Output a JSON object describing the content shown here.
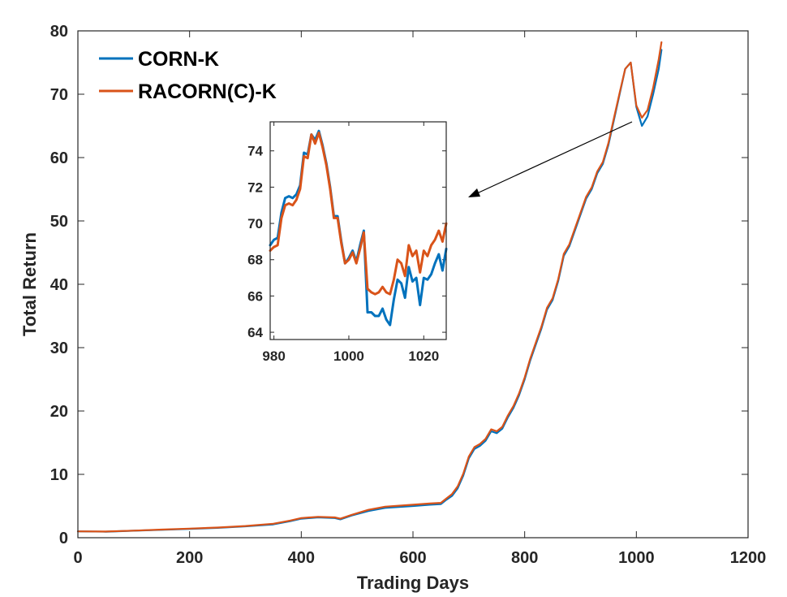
{
  "chart_data": [
    {
      "type": "line",
      "xlabel": "Trading Days",
      "ylabel": "Total Return",
      "xlim": [
        0,
        1200
      ],
      "ylim": [
        0,
        80
      ],
      "xticks": [
        0,
        200,
        400,
        600,
        800,
        1000,
        1200
      ],
      "yticks": [
        0,
        10,
        20,
        30,
        40,
        50,
        60,
        70,
        80
      ],
      "grid": false,
      "legend_position": "top-left",
      "series": [
        {
          "name": "CORN-K",
          "color": "#0072BD",
          "points": [
            [
              0,
              1.0
            ],
            [
              50,
              0.95
            ],
            [
              100,
              1.1
            ],
            [
              150,
              1.25
            ],
            [
              200,
              1.4
            ],
            [
              250,
              1.55
            ],
            [
              300,
              1.8
            ],
            [
              350,
              2.1
            ],
            [
              380,
              2.6
            ],
            [
              400,
              3.0
            ],
            [
              430,
              3.2
            ],
            [
              460,
              3.1
            ],
            [
              470,
              2.9
            ],
            [
              490,
              3.5
            ],
            [
              520,
              4.2
            ],
            [
              550,
              4.7
            ],
            [
              600,
              5.0
            ],
            [
              630,
              5.2
            ],
            [
              650,
              5.3
            ],
            [
              660,
              6.0
            ],
            [
              670,
              6.6
            ],
            [
              680,
              7.8
            ],
            [
              690,
              9.8
            ],
            [
              700,
              12.5
            ],
            [
              710,
              14.0
            ],
            [
              720,
              14.5
            ],
            [
              730,
              15.3
            ],
            [
              740,
              16.8
            ],
            [
              750,
              16.5
            ],
            [
              760,
              17.2
            ],
            [
              770,
              19.0
            ],
            [
              780,
              20.5
            ],
            [
              790,
              22.5
            ],
            [
              800,
              25.0
            ],
            [
              810,
              28.0
            ],
            [
              820,
              30.5
            ],
            [
              830,
              33.0
            ],
            [
              840,
              36.0
            ],
            [
              850,
              37.5
            ],
            [
              860,
              40.5
            ],
            [
              870,
              44.5
            ],
            [
              880,
              46.0
            ],
            [
              890,
              48.5
            ],
            [
              900,
              51.0
            ],
            [
              910,
              53.5
            ],
            [
              920,
              55.0
            ],
            [
              930,
              57.5
            ],
            [
              940,
              59.0
            ],
            [
              950,
              62.0
            ],
            [
              960,
              66.0
            ],
            [
              970,
              70.0
            ],
            [
              980,
              74.0
            ],
            [
              990,
              75.0
            ],
            [
              1000,
              68.0
            ],
            [
              1010,
              65.0
            ],
            [
              1020,
              66.5
            ],
            [
              1030,
              70.0
            ],
            [
              1040,
              74.0
            ],
            [
              1045,
              77.0
            ]
          ]
        },
        {
          "name": "RACORN(C)-K",
          "color": "#D95319",
          "points": [
            [
              0,
              1.0
            ],
            [
              50,
              0.97
            ],
            [
              100,
              1.12
            ],
            [
              150,
              1.28
            ],
            [
              200,
              1.43
            ],
            [
              250,
              1.6
            ],
            [
              300,
              1.85
            ],
            [
              350,
              2.2
            ],
            [
              380,
              2.7
            ],
            [
              400,
              3.1
            ],
            [
              430,
              3.3
            ],
            [
              460,
              3.2
            ],
            [
              470,
              3.0
            ],
            [
              490,
              3.6
            ],
            [
              520,
              4.4
            ],
            [
              550,
              4.9
            ],
            [
              600,
              5.2
            ],
            [
              630,
              5.4
            ],
            [
              650,
              5.5
            ],
            [
              660,
              6.2
            ],
            [
              670,
              6.9
            ],
            [
              680,
              8.1
            ],
            [
              690,
              10.1
            ],
            [
              700,
              12.8
            ],
            [
              710,
              14.3
            ],
            [
              720,
              14.8
            ],
            [
              730,
              15.6
            ],
            [
              740,
              17.1
            ],
            [
              750,
              16.8
            ],
            [
              760,
              17.5
            ],
            [
              770,
              19.3
            ],
            [
              780,
              20.8
            ],
            [
              790,
              22.8
            ],
            [
              800,
              25.3
            ],
            [
              810,
              28.3
            ],
            [
              820,
              30.8
            ],
            [
              830,
              33.3
            ],
            [
              840,
              36.3
            ],
            [
              850,
              37.8
            ],
            [
              860,
              40.8
            ],
            [
              870,
              44.8
            ],
            [
              880,
              46.3
            ],
            [
              890,
              48.8
            ],
            [
              900,
              51.3
            ],
            [
              910,
              53.8
            ],
            [
              920,
              55.3
            ],
            [
              930,
              57.8
            ],
            [
              940,
              59.3
            ],
            [
              950,
              62.3
            ],
            [
              960,
              66.3
            ],
            [
              970,
              70.2
            ],
            [
              980,
              74.0
            ],
            [
              990,
              75.0
            ],
            [
              1000,
              68.2
            ],
            [
              1010,
              66.3
            ],
            [
              1020,
              67.5
            ],
            [
              1030,
              71.0
            ],
            [
              1040,
              75.5
            ],
            [
              1045,
              78.2
            ]
          ]
        }
      ]
    },
    {
      "type": "line",
      "xlim": [
        979,
        1026
      ],
      "ylim": [
        63.6,
        75.6
      ],
      "xticks": [
        980,
        1000,
        1020
      ],
      "yticks": [
        64,
        66,
        68,
        70,
        72,
        74
      ],
      "grid": false,
      "series": [
        {
          "color": "#0072BD",
          "points": [
            [
              979,
              68.8
            ],
            [
              980,
              69.1
            ],
            [
              981,
              69.2
            ],
            [
              982,
              70.6
            ],
            [
              983,
              71.4
            ],
            [
              984,
              71.5
            ],
            [
              985,
              71.4
            ],
            [
              986,
              71.6
            ],
            [
              987,
              72.1
            ],
            [
              988,
              73.9
            ],
            [
              989,
              73.8
            ],
            [
              990,
              74.9
            ],
            [
              991,
              74.6
            ],
            [
              992,
              75.1
            ],
            [
              993,
              74.3
            ],
            [
              994,
              73.3
            ],
            [
              995,
              72.0
            ],
            [
              996,
              70.4
            ],
            [
              997,
              70.4
            ],
            [
              998,
              69.0
            ],
            [
              999,
              67.8
            ],
            [
              1000,
              68.1
            ],
            [
              1001,
              68.5
            ],
            [
              1002,
              67.9
            ],
            [
              1003,
              68.8
            ],
            [
              1004,
              69.6
            ],
            [
              1005,
              65.1
            ],
            [
              1006,
              65.1
            ],
            [
              1007,
              64.9
            ],
            [
              1008,
              64.9
            ],
            [
              1009,
              65.3
            ],
            [
              1010,
              64.7
            ],
            [
              1011,
              64.4
            ],
            [
              1012,
              65.8
            ],
            [
              1013,
              66.9
            ],
            [
              1014,
              66.7
            ],
            [
              1015,
              65.9
            ],
            [
              1016,
              67.6
            ],
            [
              1017,
              66.8
            ],
            [
              1018,
              67.0
            ],
            [
              1019,
              65.5
            ],
            [
              1020,
              67.0
            ],
            [
              1021,
              66.9
            ],
            [
              1022,
              67.2
            ],
            [
              1023,
              67.8
            ],
            [
              1024,
              68.3
            ],
            [
              1025,
              67.4
            ],
            [
              1026,
              68.6
            ]
          ]
        },
        {
          "color": "#D95319",
          "points": [
            [
              979,
              68.5
            ],
            [
              980,
              68.7
            ],
            [
              981,
              68.8
            ],
            [
              982,
              70.3
            ],
            [
              983,
              71.0
            ],
            [
              984,
              71.1
            ],
            [
              985,
              71.0
            ],
            [
              986,
              71.3
            ],
            [
              987,
              71.9
            ],
            [
              988,
              73.7
            ],
            [
              989,
              73.6
            ],
            [
              990,
              74.9
            ],
            [
              991,
              74.4
            ],
            [
              992,
              75.0
            ],
            [
              993,
              74.2
            ],
            [
              994,
              73.2
            ],
            [
              995,
              71.9
            ],
            [
              996,
              70.3
            ],
            [
              997,
              70.3
            ],
            [
              998,
              68.9
            ],
            [
              999,
              67.8
            ],
            [
              1000,
              68.0
            ],
            [
              1001,
              68.4
            ],
            [
              1002,
              67.8
            ],
            [
              1003,
              68.6
            ],
            [
              1004,
              69.5
            ],
            [
              1005,
              66.4
            ],
            [
              1006,
              66.2
            ],
            [
              1007,
              66.1
            ],
            [
              1008,
              66.2
            ],
            [
              1009,
              66.5
            ],
            [
              1010,
              66.2
            ],
            [
              1011,
              66.1
            ],
            [
              1012,
              66.9
            ],
            [
              1013,
              68.0
            ],
            [
              1014,
              67.8
            ],
            [
              1015,
              67.1
            ],
            [
              1016,
              68.8
            ],
            [
              1017,
              68.2
            ],
            [
              1018,
              68.5
            ],
            [
              1019,
              67.3
            ],
            [
              1020,
              68.5
            ],
            [
              1021,
              68.2
            ],
            [
              1022,
              68.8
            ],
            [
              1023,
              69.1
            ],
            [
              1024,
              69.6
            ],
            [
              1025,
              69.0
            ],
            [
              1026,
              70.0
            ]
          ]
        }
      ]
    }
  ]
}
